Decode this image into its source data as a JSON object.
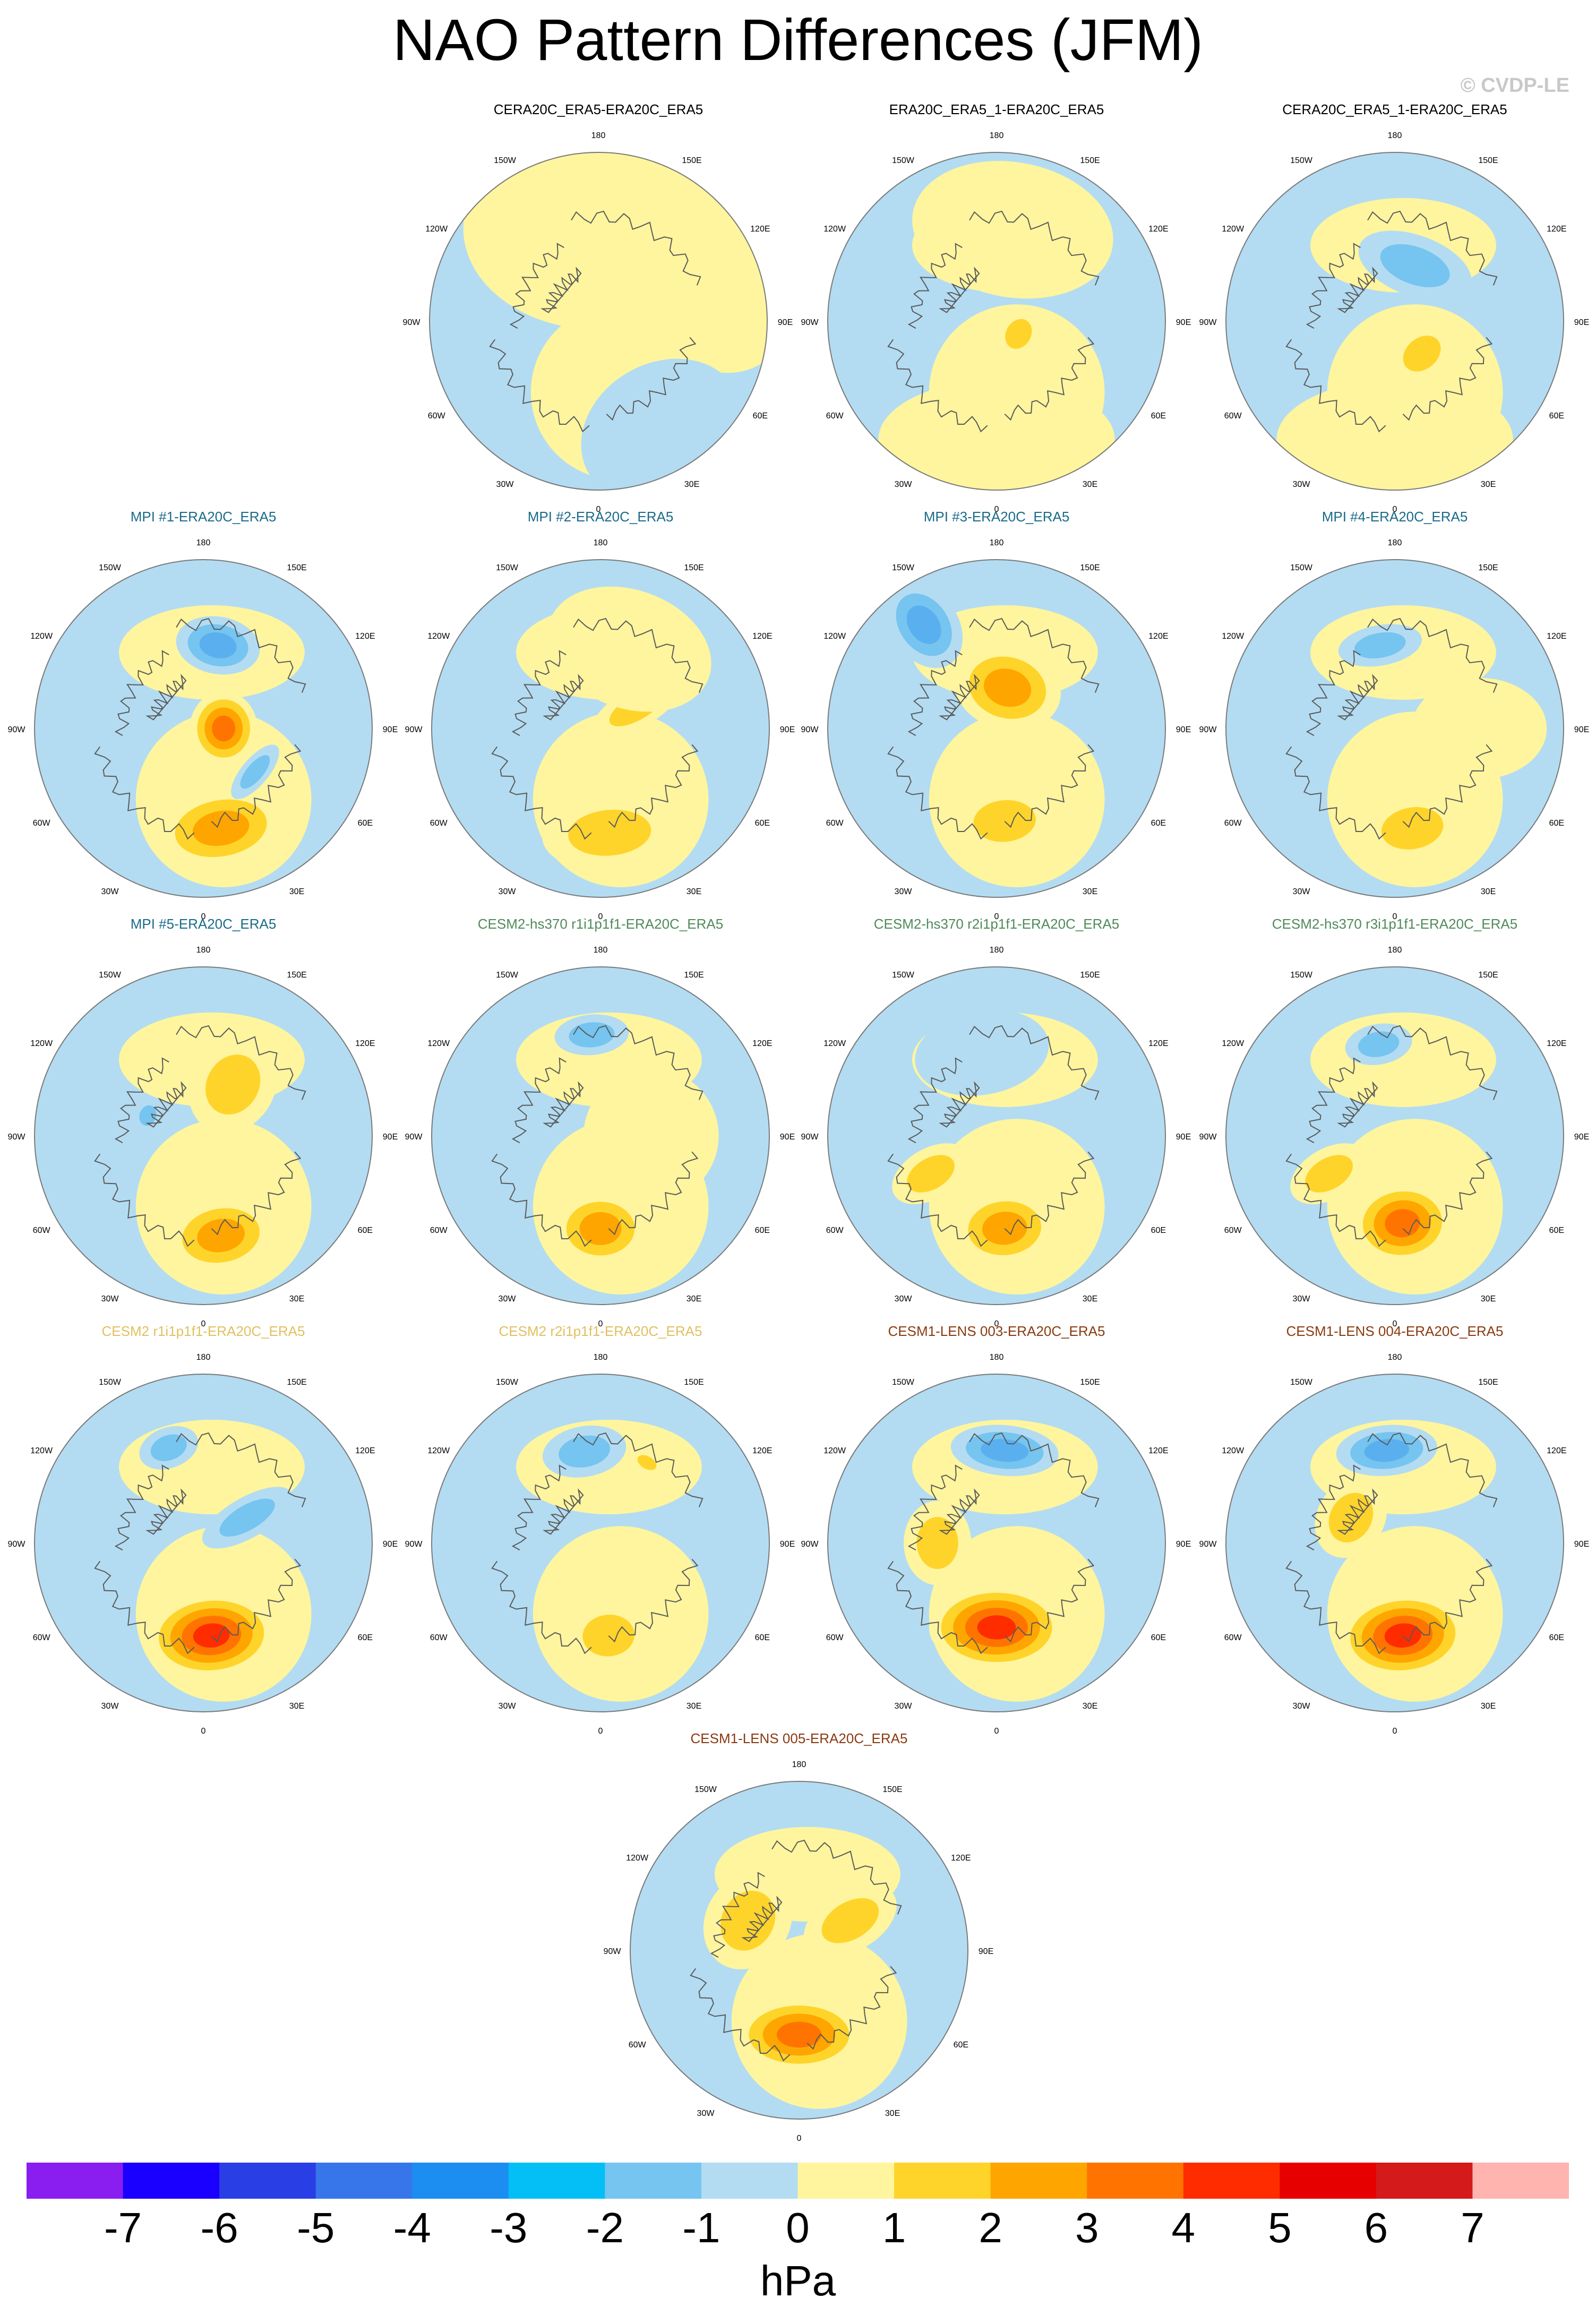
{
  "title": "NAO Pattern Differences (JFM)",
  "copyright": "© CVDP-LE",
  "colors": {
    "land_outline": "#5a5a5a",
    "neg1": "#b3dcf2",
    "neg2": "#76c4f0",
    "neg3": "#5ab0ef",
    "pos1": "#fff59e",
    "pos2": "#ffd42a",
    "pos3": "#ffa500",
    "pos4": "#ff7400",
    "pos5": "#ff2c00"
  },
  "longitude_labels": [
    "180",
    "150E",
    "120E",
    "90E",
    "60E",
    "30E",
    "0",
    "30W",
    "60W",
    "90W",
    "120W",
    "150W"
  ],
  "panels": [
    {
      "title": "CERA20C_ERA5-ERA20C_ERA5",
      "title_color": "#000000",
      "anoms": [
        {
          "lon": 0,
          "r": 0.55,
          "value": 0.5,
          "sx": 0.8,
          "sy": 0.6
        },
        {
          "lon": 60,
          "r": 0.7,
          "value": 0.5,
          "sx": 0.7,
          "sy": 0.5
        },
        {
          "lon": 150,
          "r": 0.75,
          "value": -0.5,
          "sx": 0.5,
          "sy": 0.4
        }
      ]
    },
    {
      "title": "ERA20C_ERA5_1-ERA20C_ERA5",
      "title_color": "#000000",
      "anoms": [
        {
          "lon": 120,
          "r": 0.15,
          "value": 1.2,
          "sx": 0.15,
          "sy": 0.12
        },
        {
          "lon": 180,
          "r": 0.7,
          "value": 0.5,
          "sx": 0.7,
          "sy": 0.35
        },
        {
          "lon": 10,
          "r": 0.55,
          "value": 0.5,
          "sx": 0.6,
          "sy": 0.4
        }
      ]
    },
    {
      "title": "CERA20C_ERA5_1-ERA20C_ERA5",
      "title_color": "#000000",
      "anoms": [
        {
          "lon": 140,
          "r": 0.25,
          "value": 1.1,
          "sx": 0.2,
          "sy": 0.15
        },
        {
          "lon": 180,
          "r": 0.7,
          "value": 0.5,
          "sx": 0.7,
          "sy": 0.35
        },
        {
          "lon": 20,
          "r": 0.35,
          "value": -1.2,
          "sx": 0.35,
          "sy": 0.18
        }
      ]
    },
    {
      "title": "MPI #1-ERA20C_ERA5",
      "title_color": "#1a6b8a",
      "anoms": [
        {
          "lon": 170,
          "r": 0.6,
          "value": 2.6,
          "sx": 0.38,
          "sy": 0.23
        },
        {
          "lon": 90,
          "r": 0.12,
          "value": 3.0,
          "sx": 0.22,
          "sy": 0.2
        },
        {
          "lon": 10,
          "r": 0.5,
          "value": -2.3,
          "sx": 0.25,
          "sy": 0.17
        },
        {
          "lon": 130,
          "r": 0.4,
          "value": -1.4,
          "sx": 0.2,
          "sy": 0.08
        }
      ]
    },
    {
      "title": "MPI #2-ERA20C_ERA5",
      "title_color": "#1a6b8a",
      "anoms": [
        {
          "lon": 175,
          "r": 0.62,
          "value": 1.8,
          "sx": 0.4,
          "sy": 0.22
        },
        {
          "lon": 60,
          "r": 0.25,
          "value": 1.2,
          "sx": 0.12,
          "sy": 0.3
        },
        {
          "lon": 20,
          "r": 0.5,
          "value": 0.5,
          "sx": 0.5,
          "sy": 0.35
        }
      ]
    },
    {
      "title": "MPI #3-ERA20C_ERA5",
      "title_color": "#1a6b8a",
      "anoms": [
        {
          "lon": 15,
          "r": 0.25,
          "value": 2.5,
          "sx": 0.32,
          "sy": 0.25
        },
        {
          "lon": 175,
          "r": 0.55,
          "value": 1.6,
          "sx": 0.3,
          "sy": 0.2
        },
        {
          "lon": 325,
          "r": 0.75,
          "value": -2.2,
          "sx": 0.2,
          "sy": 0.28
        }
      ]
    },
    {
      "title": "MPI #4-ERA20C_ERA5",
      "title_color": "#1a6b8a",
      "anoms": [
        {
          "lon": 170,
          "r": 0.6,
          "value": 1.6,
          "sx": 0.3,
          "sy": 0.2
        },
        {
          "lon": 350,
          "r": 0.5,
          "value": -1.5,
          "sx": 0.25,
          "sy": 0.12
        },
        {
          "lon": 90,
          "r": 0.5,
          "value": 0.5,
          "sx": 0.3,
          "sy": 0.4
        }
      ]
    },
    {
      "title": "MPI #5-ERA20C_ERA5",
      "title_color": "#1a6b8a",
      "anoms": [
        {
          "lon": 170,
          "r": 0.6,
          "value": 2.3,
          "sx": 0.32,
          "sy": 0.22
        },
        {
          "lon": 30,
          "r": 0.35,
          "value": 1.8,
          "sx": 0.25,
          "sy": 0.3
        },
        {
          "lon": 290,
          "r": 0.35,
          "value": -1.3,
          "sx": 0.1,
          "sy": 0.08
        }
      ]
    },
    {
      "title": "CESM2-hs370 r1i1p1f1-ERA20C_ERA5",
      "title_color": "#4f8a5a",
      "anoms": [
        {
          "lon": 180,
          "r": 0.55,
          "value": 2.6,
          "sx": 0.28,
          "sy": 0.22
        },
        {
          "lon": 355,
          "r": 0.6,
          "value": -1.6,
          "sx": 0.22,
          "sy": 0.12
        },
        {
          "lon": 90,
          "r": 0.3,
          "value": 0.6,
          "sx": 0.4,
          "sy": 0.4
        }
      ]
    },
    {
      "title": "CESM2-hs370 r2i1p1f1-ERA20C_ERA5",
      "title_color": "#4f8a5a",
      "anoms": [
        {
          "lon": 175,
          "r": 0.55,
          "value": 2.5,
          "sx": 0.3,
          "sy": 0.22
        },
        {
          "lon": 240,
          "r": 0.45,
          "value": 1.2,
          "sx": 0.15,
          "sy": 0.25
        },
        {
          "lon": 350,
          "r": 0.5,
          "value": -0.8,
          "sx": 0.4,
          "sy": 0.25
        }
      ]
    },
    {
      "title": "CESM2-hs370 r3i1p1f1-ERA20C_ERA5",
      "title_color": "#4f8a5a",
      "anoms": [
        {
          "lon": 175,
          "r": 0.52,
          "value": 3.6,
          "sx": 0.3,
          "sy": 0.24
        },
        {
          "lon": 350,
          "r": 0.55,
          "value": -1.6,
          "sx": 0.2,
          "sy": 0.12
        },
        {
          "lon": 240,
          "r": 0.45,
          "value": 1.2,
          "sx": 0.15,
          "sy": 0.25
        }
      ]
    },
    {
      "title": "CESM2 r1i1p1f1-ERA20C_ERA5",
      "title_color": "#e0c060",
      "anoms": [
        {
          "lon": 175,
          "r": 0.55,
          "value": 4.2,
          "sx": 0.38,
          "sy": 0.25
        },
        {
          "lon": 340,
          "r": 0.6,
          "value": -1.5,
          "sx": 0.18,
          "sy": 0.12
        },
        {
          "lon": 60,
          "r": 0.3,
          "value": -1.2,
          "sx": 0.12,
          "sy": 0.3
        }
      ]
    },
    {
      "title": "CESM2 r2i1p1f1-ERA20C_ERA5",
      "title_color": "#e0c060",
      "anoms": [
        {
          "lon": 175,
          "r": 0.55,
          "value": 1.8,
          "sx": 0.25,
          "sy": 0.2
        },
        {
          "lon": 350,
          "r": 0.55,
          "value": -1.4,
          "sx": 0.25,
          "sy": 0.15
        },
        {
          "lon": 30,
          "r": 0.55,
          "value": 1.2,
          "sx": 0.1,
          "sy": 0.06
        }
      ]
    },
    {
      "title": "CESM1-LENS 003-ERA20C_ERA5",
      "title_color": "#8a3a10",
      "anoms": [
        {
          "lon": 180,
          "r": 0.5,
          "value": 4.4,
          "sx": 0.4,
          "sy": 0.25
        },
        {
          "lon": 5,
          "r": 0.55,
          "value": -2.5,
          "sx": 0.32,
          "sy": 0.15
        },
        {
          "lon": 270,
          "r": 0.35,
          "value": 1.5,
          "sx": 0.25,
          "sy": 0.2
        }
      ]
    },
    {
      "title": "CESM1-LENS 004-ERA20C_ERA5",
      "title_color": "#8a3a10",
      "anoms": [
        {
          "lon": 175,
          "r": 0.55,
          "value": 4.0,
          "sx": 0.38,
          "sy": 0.25
        },
        {
          "lon": 355,
          "r": 0.55,
          "value": -2.8,
          "sx": 0.3,
          "sy": 0.15
        },
        {
          "lon": 300,
          "r": 0.3,
          "value": 1.3,
          "sx": 0.25,
          "sy": 0.2
        }
      ]
    },
    {
      "title": "CESM1-LENS 005-ERA20C_ERA5",
      "title_color": "#8a3a10",
      "anoms": [
        {
          "lon": 180,
          "r": 0.5,
          "value": 3.2,
          "sx": 0.38,
          "sy": 0.22
        },
        {
          "lon": 300,
          "r": 0.35,
          "value": 1.5,
          "sx": 0.3,
          "sy": 0.25
        },
        {
          "lon": 60,
          "r": 0.35,
          "value": 1.3,
          "sx": 0.18,
          "sy": 0.3
        }
      ]
    }
  ],
  "colorbar": {
    "colors": [
      "#8a1df0",
      "#1a00ff",
      "#2a3ee6",
      "#3776ea",
      "#1c8ef2",
      "#04bff5",
      "#76c4f0",
      "#b3dcf2",
      "#fff59e",
      "#ffd42a",
      "#ffa500",
      "#ff7400",
      "#ff2c00",
      "#e60000",
      "#d41a1a",
      "#ffb4b0"
    ],
    "labels": [
      "-7",
      "-6",
      "-5",
      "-4",
      "-3",
      "-2",
      "-1",
      "0",
      "1",
      "2",
      "3",
      "4",
      "5",
      "6",
      "7"
    ],
    "units": "hPa"
  }
}
